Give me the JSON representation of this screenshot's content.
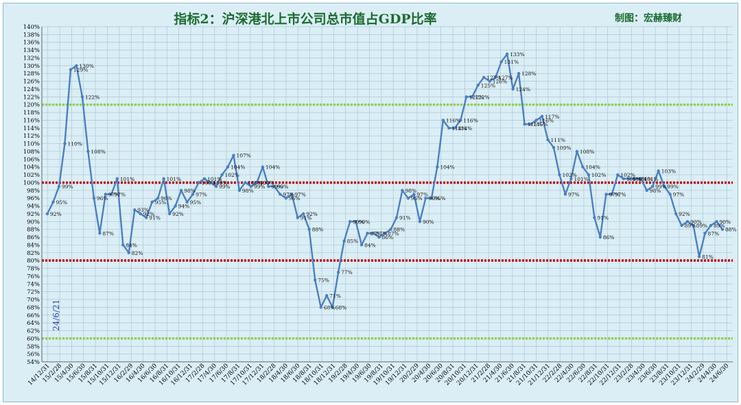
{
  "chart_data": {
    "type": "line",
    "title": "指标2：沪深港北上市公司总市值占GDP比率",
    "credit": "制图：宏赫臻财",
    "annotation": "24/6/21",
    "ylim": [
      54,
      140
    ],
    "y_step": 2,
    "y_unit": "%",
    "grid": true,
    "colors": {
      "background": "#dbeef6",
      "grid": "#aac6d6",
      "line": "#4a7fc1",
      "title": "#1a6b2e",
      "annotation": "#2b3fb0",
      "ref_red": "#c00000",
      "ref_green": "#92d050"
    },
    "reference_lines": [
      {
        "y": 120,
        "color": "#92d050"
      },
      {
        "y": 100,
        "color": "#c00000"
      },
      {
        "y": 80,
        "color": "#c00000"
      },
      {
        "y": 60,
        "color": "#92d050"
      }
    ],
    "x_ticks": [
      "14/12/31",
      "15/2/28",
      "15/4/30",
      "15/6/30",
      "15/8/31",
      "15/10/31",
      "15/12/31",
      "16/2/29",
      "16/4/30",
      "16/6/30",
      "16/8/31",
      "16/10/31",
      "16/12/31",
      "17/2/28",
      "17/4/30",
      "17/6/30",
      "17/8/31",
      "17/10/31",
      "17/12/31",
      "18/2/28",
      "18/4/30",
      "18/6/30",
      "18/8/31",
      "18/10/31",
      "18/12/31",
      "19/2/28",
      "19/4/30",
      "19/6/30",
      "19/8/31",
      "19/10/31",
      "19/12/31",
      "20/2/29",
      "20/4/30",
      "20/6/30",
      "20/8/31",
      "20/10/31",
      "20/12/31",
      "21/2/28",
      "21/4/30",
      "21/6/30",
      "21/8/31",
      "21/10/31",
      "21/12/31",
      "22/2/28",
      "22/4/30",
      "22/6/30",
      "22/8/31",
      "22/10/31",
      "22/12/31",
      "23/2/28",
      "23/4/30",
      "23/6/30",
      "23/8/31",
      "23/10/31",
      "23/12/31",
      "24/2/29",
      "24/4/30",
      "24/6/30"
    ],
    "series": [
      {
        "values": [
          92,
          95,
          99,
          110,
          129,
          130,
          122,
          108,
          96,
          87,
          97,
          97,
          101,
          84,
          82,
          93,
          92,
          91,
          95,
          96,
          101,
          92,
          94,
          98,
          95,
          97,
          100,
          101,
          100,
          99,
          102,
          104,
          107,
          98,
          100,
          99,
          100,
          104,
          99,
          99,
          97,
          96,
          97,
          91,
          92,
          88,
          75,
          68,
          71,
          68,
          77,
          85,
          90,
          90,
          84,
          87,
          87,
          86,
          87,
          88,
          91,
          98,
          96,
          97,
          90,
          96,
          96,
          104,
          116,
          114,
          114,
          116,
          122,
          122,
          125,
          127,
          126,
          127,
          131,
          133,
          124,
          128,
          115,
          115,
          116,
          117,
          111,
          109,
          102,
          97,
          101,
          108,
          104,
          102,
          91,
          86,
          97,
          97,
          102,
          101,
          101,
          101,
          101,
          98,
          99,
          103,
          99,
          97,
          92,
          89,
          90,
          89,
          81,
          87,
          89,
          90,
          88
        ]
      }
    ],
    "data_labels": [
      "92%",
      "95%",
      "99%",
      "110%",
      "129%",
      "130%",
      "122%",
      "108%",
      "96%",
      "87%",
      "97%",
      "97%",
      "101%",
      "84%",
      "82%",
      "93%",
      "92%",
      "91%",
      "95%",
      "96%",
      "101%",
      "92%",
      "94%",
      "98%",
      "95%",
      "97%",
      "100%",
      "101%",
      "100%",
      "99%",
      "102%",
      "104%",
      "107%",
      "98%",
      "100%",
      "99%",
      "100%",
      "104%",
      "99%",
      "99%",
      "97%",
      "96%",
      "97%",
      "91%",
      "92%",
      "88%",
      "75%",
      "68%",
      "71%",
      "68%",
      "77%",
      "85%",
      "90%",
      "90%",
      "84%",
      "87%",
      "87%",
      "86%",
      "87%",
      "88%",
      "91%",
      "98%",
      "96%",
      "97%",
      "90%",
      "96%",
      "96%",
      "104%",
      "116%",
      "114%",
      "114%",
      "116%",
      "122%",
      "122%",
      "125%",
      "127%",
      "126%",
      "127%",
      "131%",
      "133%",
      "124%",
      "128%",
      "115%",
      "115%",
      "116%",
      "117%",
      "111%",
      "109%",
      "102%",
      "97%",
      "101%",
      "108%",
      "104%",
      "102%",
      "91%",
      "86%",
      "97%",
      "97%",
      "102%",
      "101%",
      "101%",
      "101%",
      "101%",
      "98%",
      "99%",
      "103%",
      "99%",
      "97%",
      "92%",
      "89%",
      "90%",
      "89%",
      "81%",
      "87%",
      "89%",
      "90%",
      "88%"
    ]
  }
}
